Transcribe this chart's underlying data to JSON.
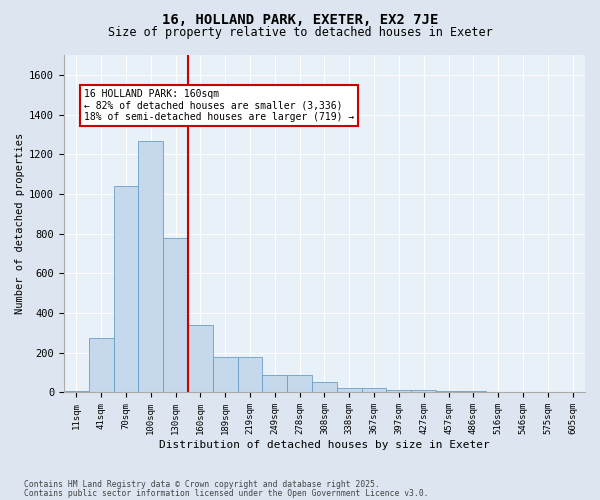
{
  "title1": "16, HOLLAND PARK, EXETER, EX2 7JE",
  "title2": "Size of property relative to detached houses in Exeter",
  "xlabel": "Distribution of detached houses by size in Exeter",
  "ylabel": "Number of detached properties",
  "categories": [
    "11sqm",
    "41sqm",
    "70sqm",
    "100sqm",
    "130sqm",
    "160sqm",
    "189sqm",
    "219sqm",
    "249sqm",
    "278sqm",
    "308sqm",
    "338sqm",
    "367sqm",
    "397sqm",
    "427sqm",
    "457sqm",
    "486sqm",
    "516sqm",
    "546sqm",
    "575sqm",
    "605sqm"
  ],
  "values": [
    5,
    275,
    1040,
    1265,
    780,
    340,
    180,
    180,
    90,
    90,
    55,
    25,
    25,
    12,
    12,
    5,
    5,
    2,
    2,
    1,
    1
  ],
  "bar_color": "#c5d8ec",
  "bar_edge_color": "#6a9fc8",
  "vline_x": 5,
  "vline_color": "#cc0000",
  "annotation_text": "16 HOLLAND PARK: 160sqm\n← 82% of detached houses are smaller (3,336)\n18% of semi-detached houses are larger (719) →",
  "annotation_box_color": "#cc0000",
  "ylim": [
    0,
    1700
  ],
  "yticks": [
    0,
    200,
    400,
    600,
    800,
    1000,
    1200,
    1400,
    1600
  ],
  "footer1": "Contains HM Land Registry data © Crown copyright and database right 2025.",
  "footer2": "Contains public sector information licensed under the Open Government Licence v3.0.",
  "bg_color": "#dde6f0",
  "plot_bg_color": "#e8f0f8"
}
